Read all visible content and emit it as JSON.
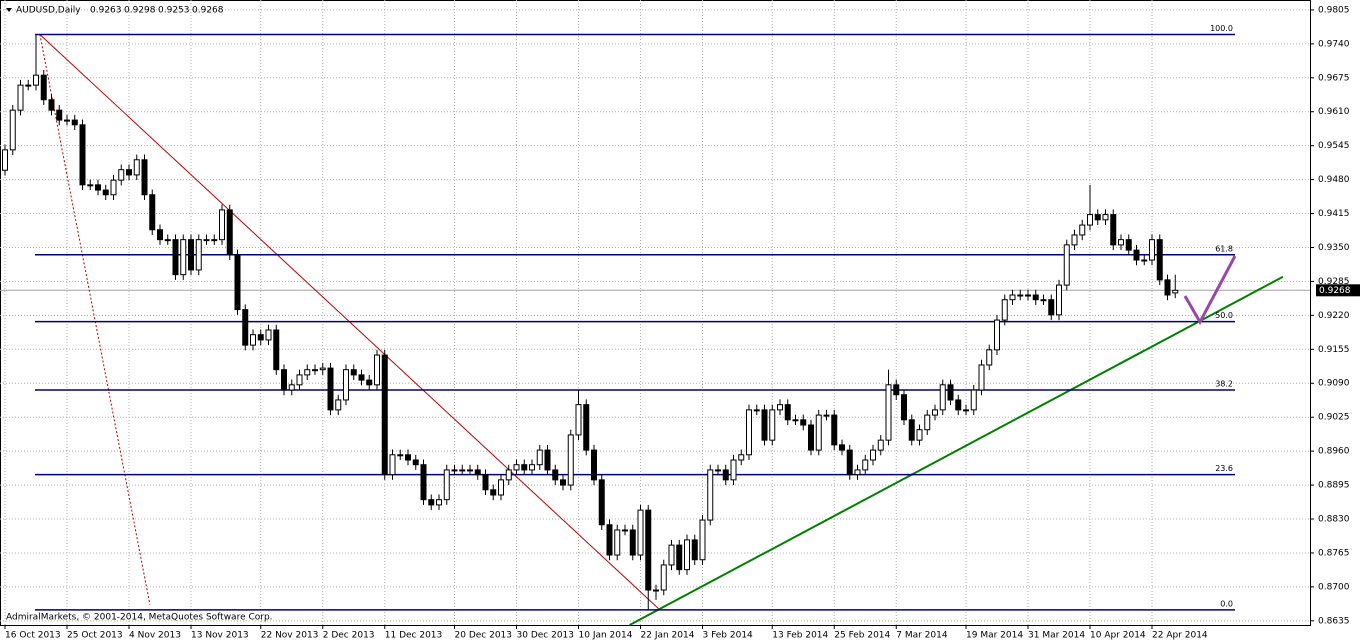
{
  "chart_data": {
    "type": "candlestick",
    "symbol": "AUDUSD,Daily",
    "copyright": "AdmiralMarkets, © 2001-2014, MetaQuotes Software Corp.",
    "ylim": [
      0.8627,
      0.9824
    ],
    "yticks": [
      0.9805,
      {
        "value": 0.974,
        "label": "0.9740"
      },
      0.9675,
      {
        "value": 0.961,
        "label": "0.9610"
      },
      0.9545,
      {
        "value": 0.948,
        "label": "0.9480"
      },
      0.9415,
      {
        "value": 0.935,
        "label": "0.9350"
      },
      0.9285,
      {
        "value": 0.922,
        "label": "0.9220"
      },
      0.9155,
      {
        "value": 0.909,
        "label": "0.9090"
      },
      0.9025,
      {
        "value": 0.896,
        "label": "0.8960"
      },
      0.8895,
      {
        "value": 0.883,
        "label": "0.8830"
      },
      0.8765,
      {
        "value": 0.87,
        "label": "0.8700"
      },
      0.8635
    ],
    "xticks": [
      {
        "value": 0,
        "label": "16 Oct 2013"
      },
      {
        "value": 8,
        "label": "25 Oct 2013"
      },
      {
        "value": 16,
        "label": "4 Nov 2013"
      },
      {
        "value": 24,
        "label": "13 Nov 2013"
      },
      {
        "value": 33,
        "label": "22 Nov 2013"
      },
      {
        "value": 41,
        "label": "2 Dec 2013"
      },
      {
        "value": 49,
        "label": "11 Dec 2013"
      },
      {
        "value": 58,
        "label": "20 Dec 2013"
      },
      {
        "value": 66,
        "label": "30 Dec 2013"
      },
      {
        "value": 74,
        "label": "10 Jan 2014"
      },
      {
        "value": 82,
        "label": "22 Jan 2014"
      },
      {
        "value": 90,
        "label": "3 Feb 2014"
      },
      {
        "value": 99,
        "label": "13 Feb 2014"
      },
      {
        "value": 107,
        "label": "25 Feb 2014"
      },
      {
        "value": 115,
        "label": "7 Mar 2014"
      },
      {
        "value": 124,
        "label": "19 Mar 2014"
      },
      {
        "value": 132,
        "label": "31 Mar 2014"
      },
      {
        "value": 140,
        "label": "10 Apr 2014"
      },
      {
        "value": 148,
        "label": "22 Apr 2014"
      }
    ],
    "grid": true,
    "current_price": 0.9268,
    "fib_levels": [
      {
        "value": 0.9758,
        "label": "100.0"
      },
      {
        "value": 0.9336,
        "label": "61.8"
      },
      {
        "value": 0.9208,
        "label": "50.0"
      },
      {
        "value": 0.9077,
        "label": "38.2"
      },
      {
        "value": 0.8915,
        "label": "23.6"
      },
      {
        "value": 0.8656,
        "label": "0.0"
      }
    ],
    "fib_color": "#000080",
    "trendlines": [
      {
        "color": "#c00000",
        "style": "solid",
        "x": [
          4.5,
          84.5
        ],
        "y": [
          0.9758,
          0.8656
        ]
      },
      {
        "color": "#c00000",
        "style": "dotted",
        "x": [
          4.5,
          18.7
        ],
        "y": [
          0.9758,
          0.8666
        ]
      },
      {
        "color": "#008000",
        "style": "solid",
        "x": [
          80.6,
          164.9
        ],
        "y": [
          0.8627,
          0.9294
        ]
      }
    ],
    "ohlc": [
      [
        0.9498,
        0.9547,
        0.9488,
        0.9537
      ],
      [
        0.9537,
        0.9623,
        0.9527,
        0.9613
      ],
      [
        0.9613,
        0.9671,
        0.9603,
        0.9661
      ],
      [
        0.9661,
        0.9671,
        0.9651,
        0.9661
      ],
      [
        0.9661,
        0.9757,
        0.9651,
        0.968
      ],
      [
        0.968,
        0.969,
        0.9623,
        0.9633
      ],
      [
        0.9633,
        0.9643,
        0.9603,
        0.9613
      ],
      [
        0.9613,
        0.9623,
        0.9584,
        0.9594
      ],
      [
        0.9594,
        0.9604,
        0.9584,
        0.9594
      ],
      [
        0.9594,
        0.9604,
        0.9575,
        0.9585
      ],
      [
        0.9585,
        0.9595,
        0.946,
        0.947
      ],
      [
        0.947,
        0.948,
        0.946,
        0.947
      ],
      [
        0.947,
        0.948,
        0.945,
        0.946
      ],
      [
        0.946,
        0.947,
        0.9441,
        0.9451
      ],
      [
        0.9451,
        0.9489,
        0.9441,
        0.9479
      ],
      [
        0.9479,
        0.9509,
        0.9469,
        0.9499
      ],
      [
        0.9499,
        0.9509,
        0.9479,
        0.9489
      ],
      [
        0.9489,
        0.9528,
        0.9479,
        0.9518
      ],
      [
        0.9518,
        0.9528,
        0.9441,
        0.9451
      ],
      [
        0.9451,
        0.9461,
        0.9374,
        0.9384
      ],
      [
        0.9384,
        0.9394,
        0.9355,
        0.9365
      ],
      [
        0.9365,
        0.9375,
        0.9355,
        0.9365
      ],
      [
        0.9365,
        0.9375,
        0.9288,
        0.9298
      ],
      [
        0.9298,
        0.9375,
        0.9288,
        0.9365
      ],
      [
        0.9365,
        0.9375,
        0.9297,
        0.9307
      ],
      [
        0.9307,
        0.9375,
        0.9297,
        0.9365
      ],
      [
        0.9365,
        0.9375,
        0.9355,
        0.9365
      ],
      [
        0.9365,
        0.9375,
        0.9355,
        0.9365
      ],
      [
        0.9365,
        0.9432,
        0.9355,
        0.9422
      ],
      [
        0.9422,
        0.9432,
        0.9326,
        0.9336
      ],
      [
        0.9336,
        0.9346,
        0.9221,
        0.9231
      ],
      [
        0.9231,
        0.9241,
        0.9153,
        0.9163
      ],
      [
        0.9163,
        0.9193,
        0.9153,
        0.9183
      ],
      [
        0.9183,
        0.9193,
        0.9163,
        0.9173
      ],
      [
        0.9173,
        0.9202,
        0.9163,
        0.9192
      ],
      [
        0.9192,
        0.9202,
        0.9106,
        0.9116
      ],
      [
        0.9116,
        0.9126,
        0.9067,
        0.9077
      ],
      [
        0.9077,
        0.9097,
        0.9067,
        0.9087
      ],
      [
        0.9087,
        0.9116,
        0.9077,
        0.9106
      ],
      [
        0.9106,
        0.9126,
        0.9096,
        0.9116
      ],
      [
        0.9116,
        0.9126,
        0.9106,
        0.9116
      ],
      [
        0.9116,
        0.9129,
        0.9106,
        0.9119
      ],
      [
        0.9119,
        0.9129,
        0.9029,
        0.9039
      ],
      [
        0.9039,
        0.9068,
        0.9029,
        0.9058
      ],
      [
        0.9058,
        0.9126,
        0.9048,
        0.9116
      ],
      [
        0.9116,
        0.9126,
        0.9096,
        0.9106
      ],
      [
        0.9106,
        0.9116,
        0.9086,
        0.9096
      ],
      [
        0.9096,
        0.9106,
        0.9077,
        0.9087
      ],
      [
        0.9087,
        0.9154,
        0.9077,
        0.9144
      ],
      [
        0.9144,
        0.9154,
        0.8905,
        0.8915
      ],
      [
        0.8915,
        0.8963,
        0.8905,
        0.8953
      ],
      [
        0.8953,
        0.8963,
        0.8943,
        0.8953
      ],
      [
        0.8953,
        0.8963,
        0.8933,
        0.8943
      ],
      [
        0.8943,
        0.8953,
        0.8924,
        0.8934
      ],
      [
        0.8934,
        0.8944,
        0.8857,
        0.8867
      ],
      [
        0.8867,
        0.8877,
        0.8847,
        0.8857
      ],
      [
        0.8857,
        0.8877,
        0.8847,
        0.8867
      ],
      [
        0.8867,
        0.8934,
        0.8857,
        0.8924
      ],
      [
        0.8924,
        0.8934,
        0.8914,
        0.8924
      ],
      [
        0.8924,
        0.8934,
        0.8914,
        0.8924
      ],
      [
        0.8924,
        0.8934,
        0.8914,
        0.8924
      ],
      [
        0.8924,
        0.8934,
        0.8905,
        0.8915
      ],
      [
        0.8915,
        0.8925,
        0.8876,
        0.8886
      ],
      [
        0.8886,
        0.8896,
        0.8866,
        0.8876
      ],
      [
        0.8876,
        0.8915,
        0.8866,
        0.8905
      ],
      [
        0.8905,
        0.8934,
        0.8895,
        0.8924
      ],
      [
        0.8924,
        0.8944,
        0.8914,
        0.8934
      ],
      [
        0.8934,
        0.8944,
        0.8914,
        0.8924
      ],
      [
        0.8924,
        0.8944,
        0.8914,
        0.8934
      ],
      [
        0.8934,
        0.8972,
        0.8924,
        0.8962
      ],
      [
        0.8962,
        0.8972,
        0.8914,
        0.8924
      ],
      [
        0.8924,
        0.8934,
        0.8895,
        0.8905
      ],
      [
        0.8905,
        0.8915,
        0.8885,
        0.8895
      ],
      [
        0.8895,
        0.9001,
        0.8885,
        0.8991
      ],
      [
        0.8991,
        0.9077,
        0.8981,
        0.9049
      ],
      [
        0.9049,
        0.9059,
        0.8952,
        0.8962
      ],
      [
        0.8962,
        0.8972,
        0.8895,
        0.8905
      ],
      [
        0.8905,
        0.8915,
        0.8809,
        0.8819
      ],
      [
        0.8819,
        0.8829,
        0.8751,
        0.8761
      ],
      [
        0.8761,
        0.8819,
        0.8751,
        0.8809
      ],
      [
        0.8809,
        0.8819,
        0.8799,
        0.8809
      ],
      [
        0.8809,
        0.8819,
        0.8751,
        0.8761
      ],
      [
        0.8761,
        0.8857,
        0.8751,
        0.8847
      ],
      [
        0.8847,
        0.8857,
        0.8656,
        0.8694
      ],
      [
        0.8694,
        0.8704,
        0.8675,
        0.8694
      ],
      [
        0.8694,
        0.8752,
        0.8684,
        0.8742
      ],
      [
        0.8742,
        0.879,
        0.8732,
        0.878
      ],
      [
        0.878,
        0.879,
        0.8723,
        0.8733
      ],
      [
        0.8733,
        0.88,
        0.8723,
        0.879
      ],
      [
        0.879,
        0.88,
        0.8742,
        0.8752
      ],
      [
        0.8752,
        0.8838,
        0.8742,
        0.8828
      ],
      [
        0.8828,
        0.8934,
        0.8818,
        0.8924
      ],
      [
        0.8924,
        0.8934,
        0.8914,
        0.8924
      ],
      [
        0.8924,
        0.8934,
        0.8895,
        0.8905
      ],
      [
        0.8905,
        0.8953,
        0.8895,
        0.8943
      ],
      [
        0.8943,
        0.8963,
        0.8933,
        0.8953
      ],
      [
        0.8953,
        0.9049,
        0.8943,
        0.9039
      ],
      [
        0.9039,
        0.9049,
        0.9029,
        0.9039
      ],
      [
        0.9039,
        0.9049,
        0.8971,
        0.8981
      ],
      [
        0.8981,
        0.9049,
        0.8971,
        0.9039
      ],
      [
        0.9039,
        0.9059,
        0.9029,
        0.9049
      ],
      [
        0.9049,
        0.9059,
        0.901,
        0.902
      ],
      [
        0.902,
        0.903,
        0.901,
        0.902
      ],
      [
        0.902,
        0.903,
        0.9,
        0.901
      ],
      [
        0.901,
        0.902,
        0.8952,
        0.8962
      ],
      [
        0.8962,
        0.9039,
        0.8952,
        0.9029
      ],
      [
        0.9029,
        0.9039,
        0.9019,
        0.9029
      ],
      [
        0.9029,
        0.9039,
        0.8962,
        0.8972
      ],
      [
        0.8972,
        0.8982,
        0.8952,
        0.8962
      ],
      [
        0.8962,
        0.8972,
        0.8905,
        0.8915
      ],
      [
        0.8915,
        0.8934,
        0.8905,
        0.8924
      ],
      [
        0.8924,
        0.8953,
        0.8914,
        0.8943
      ],
      [
        0.8943,
        0.8972,
        0.8933,
        0.8962
      ],
      [
        0.8962,
        0.8991,
        0.8952,
        0.8981
      ],
      [
        0.8981,
        0.9116,
        0.8971,
        0.9087
      ],
      [
        0.9087,
        0.9097,
        0.9058,
        0.9068
      ],
      [
        0.9068,
        0.9078,
        0.901,
        0.902
      ],
      [
        0.902,
        0.903,
        0.8971,
        0.8981
      ],
      [
        0.8981,
        0.9011,
        0.8971,
        0.9001
      ],
      [
        0.9001,
        0.9039,
        0.8991,
        0.9029
      ],
      [
        0.9029,
        0.9049,
        0.9019,
        0.9039
      ],
      [
        0.9039,
        0.9097,
        0.9029,
        0.9087
      ],
      [
        0.9087,
        0.9097,
        0.9048,
        0.9058
      ],
      [
        0.9058,
        0.9068,
        0.9029,
        0.9039
      ],
      [
        0.9039,
        0.9049,
        0.9029,
        0.9039
      ],
      [
        0.9039,
        0.9087,
        0.9029,
        0.9077
      ],
      [
        0.9077,
        0.9135,
        0.9067,
        0.9125
      ],
      [
        0.9125,
        0.9164,
        0.9115,
        0.9154
      ],
      [
        0.9154,
        0.9221,
        0.9144,
        0.9211
      ],
      [
        0.9211,
        0.926,
        0.9201,
        0.925
      ],
      [
        0.925,
        0.9269,
        0.924,
        0.9259
      ],
      [
        0.9259,
        0.9269,
        0.9249,
        0.9259
      ],
      [
        0.9259,
        0.9269,
        0.9249,
        0.9259
      ],
      [
        0.9259,
        0.9269,
        0.924,
        0.925
      ],
      [
        0.925,
        0.926,
        0.924,
        0.925
      ],
      [
        0.925,
        0.926,
        0.9211,
        0.9221
      ],
      [
        0.9221,
        0.9288,
        0.9211,
        0.9278
      ],
      [
        0.9278,
        0.9365,
        0.9268,
        0.9355
      ],
      [
        0.9355,
        0.9384,
        0.9345,
        0.9374
      ],
      [
        0.9374,
        0.9403,
        0.9364,
        0.9393
      ],
      [
        0.9393,
        0.947,
        0.9383,
        0.9413
      ],
      [
        0.9413,
        0.9423,
        0.9393,
        0.9403
      ],
      [
        0.9403,
        0.9423,
        0.9393,
        0.9413
      ],
      [
        0.9413,
        0.9423,
        0.9345,
        0.9355
      ],
      [
        0.9355,
        0.9375,
        0.9345,
        0.9365
      ],
      [
        0.9365,
        0.9375,
        0.9335,
        0.9345
      ],
      [
        0.9345,
        0.9355,
        0.9316,
        0.9326
      ],
      [
        0.9326,
        0.9336,
        0.9316,
        0.9326
      ],
      [
        0.9326,
        0.9375,
        0.9316,
        0.9365
      ],
      [
        0.9365,
        0.9375,
        0.9278,
        0.9288
      ],
      [
        0.9288,
        0.9298,
        0.9249,
        0.9259
      ],
      [
        0.9263,
        0.9298,
        0.9253,
        0.9268
      ]
    ]
  }
}
